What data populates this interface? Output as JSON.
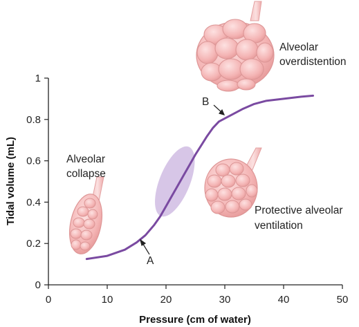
{
  "chart_data": {
    "type": "line",
    "title": "",
    "xlabel": "Pressure (cm of water)",
    "ylabel": "Tidal volume (mL)",
    "xlim": [
      0,
      50
    ],
    "ylim": [
      0,
      1
    ],
    "x_ticks": [
      "0",
      "10",
      "20",
      "30",
      "40",
      "50"
    ],
    "y_ticks": [
      "0",
      "0.2",
      "0.4",
      "0.6",
      "0.8",
      "1"
    ],
    "grid": false,
    "series": [
      {
        "x": [
          6.5,
          10,
          13,
          15,
          16.5,
          18,
          19,
          20,
          21,
          22,
          23,
          24,
          25,
          26,
          27,
          28,
          29,
          30,
          31,
          32,
          33,
          35,
          37,
          40,
          43,
          45
        ],
        "y": [
          0.125,
          0.14,
          0.17,
          0.205,
          0.24,
          0.29,
          0.33,
          0.38,
          0.43,
          0.48,
          0.53,
          0.58,
          0.63,
          0.675,
          0.72,
          0.76,
          0.79,
          0.805,
          0.82,
          0.835,
          0.85,
          0.875,
          0.89,
          0.9,
          0.91,
          0.915
        ]
      }
    ],
    "highlight_region": {
      "center_x": 21.5,
      "center_y": 0.5,
      "label": "Protective alveolar ventilation"
    },
    "annotations": [
      {
        "label": "A",
        "x": 16.5,
        "y": 0.22
      },
      {
        "label": "B",
        "x": 29.5,
        "y": 0.8
      },
      {
        "label_lines": [
          "Alveolar",
          "overdistention"
        ]
      },
      {
        "label_lines": [
          "Alveolar",
          "collapse"
        ]
      },
      {
        "label_lines": [
          "Protective alveolar",
          "ventilation"
        ]
      }
    ],
    "colors": {
      "curve": "#7a4aa1",
      "highlight": "#c9b3df",
      "alveoli": "#f2aaaa"
    }
  }
}
